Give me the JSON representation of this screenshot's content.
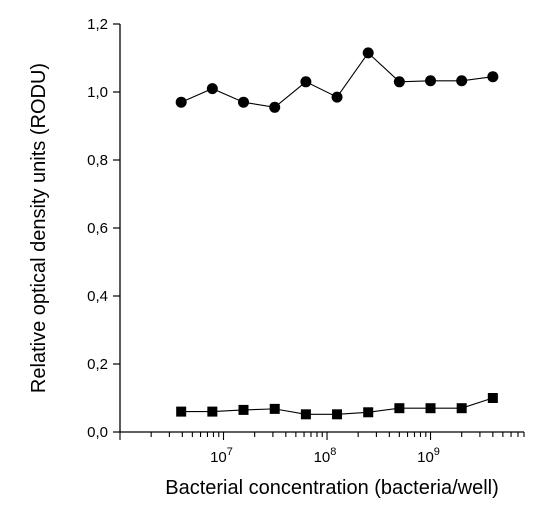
{
  "chart_data": {
    "type": "line",
    "title": "",
    "xlabel": "Bacterial concentration (bacteria/well)",
    "ylabel": "Relative optical density units (RODU)",
    "xscale": "log",
    "xlim": [
      1000000,
      8000000000
    ],
    "ylim": [
      0,
      1.2
    ],
    "yticks": [
      "0,0",
      "0,2",
      "0,4",
      "0,6",
      "0,8",
      "1,0",
      "1,2"
    ],
    "xticks": [
      {
        "base": "10",
        "exp": "7",
        "value": 10000000
      },
      {
        "base": "10",
        "exp": "8",
        "value": 100000000
      },
      {
        "base": "10",
        "exp": "9",
        "value": 1000000000
      }
    ],
    "x": [
      3900000,
      7800000,
      15600000,
      31250000,
      62500000,
      125000000,
      250000000,
      500000000,
      1000000000,
      2000000000,
      4000000000
    ],
    "series": [
      {
        "marker": "circle",
        "values": [
          0.97,
          1.01,
          0.97,
          0.955,
          1.03,
          0.985,
          1.115,
          1.03,
          1.033,
          1.033,
          1.045
        ]
      },
      {
        "marker": "square",
        "values": [
          0.06,
          0.06,
          0.065,
          0.068,
          0.052,
          0.052,
          0.058,
          0.07,
          0.07,
          0.07,
          0.1
        ]
      }
    ],
    "grid": false,
    "legend": "none"
  }
}
